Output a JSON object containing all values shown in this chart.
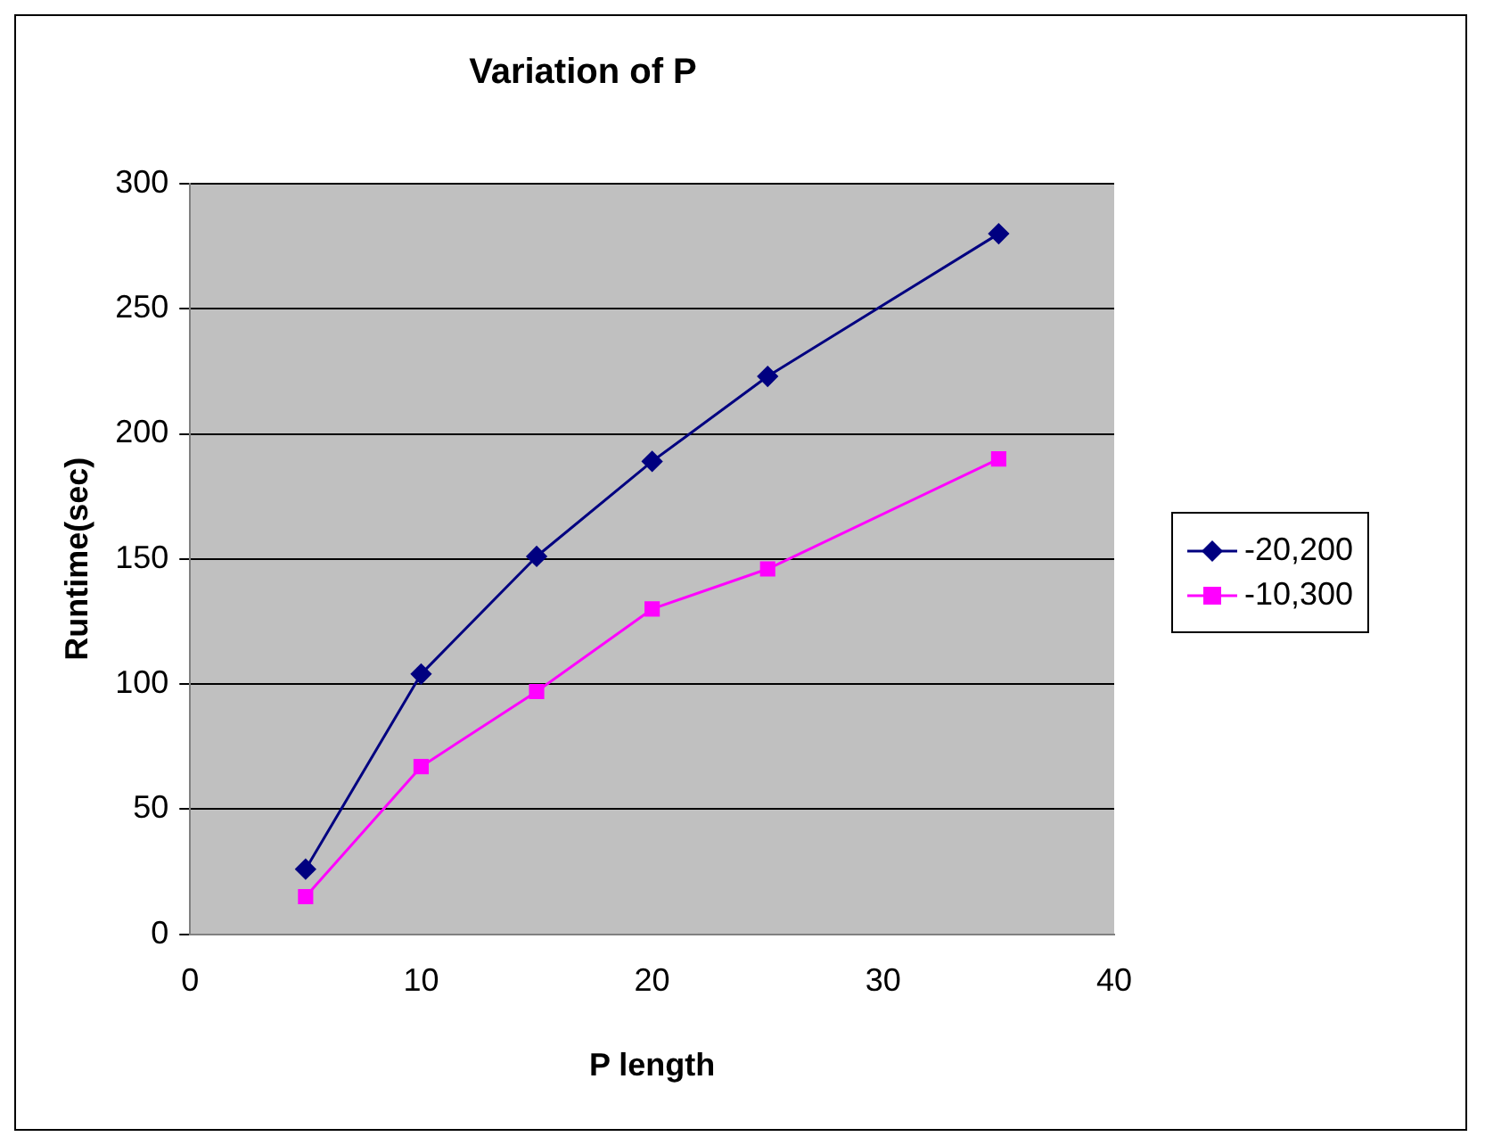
{
  "chart_data": {
    "type": "line",
    "title": "Variation of P",
    "xlabel": "P length",
    "ylabel": "Runtime(sec)",
    "x": [
      5,
      10,
      15,
      20,
      25,
      35
    ],
    "series": [
      {
        "name": "-20,200",
        "color": "#000080",
        "marker": "diamond",
        "values": [
          26,
          104,
          151,
          189,
          223,
          280
        ]
      },
      {
        "name": "-10,300",
        "color": "#ff00ff",
        "marker": "square",
        "values": [
          15,
          67,
          97,
          130,
          146,
          190
        ]
      }
    ],
    "xlim": [
      0,
      40
    ],
    "xticks": [
      0,
      10,
      20,
      30,
      40
    ],
    "ylim": [
      0,
      300
    ],
    "yticks": [
      0,
      50,
      100,
      150,
      200,
      250,
      300
    ],
    "grid": "y",
    "legend": "right",
    "line_style": "solid"
  }
}
